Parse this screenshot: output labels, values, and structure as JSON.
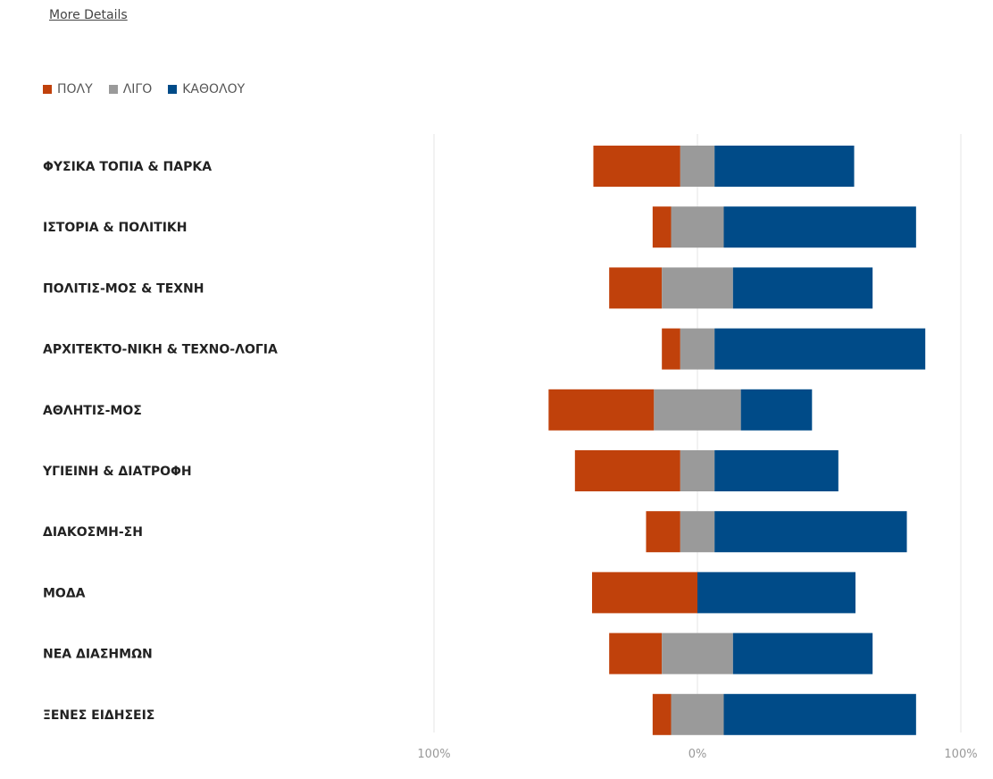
{
  "header": {
    "link_label": "More Details"
  },
  "colors": {
    "poly": "#c0410b",
    "ligo": "#9a9a9a",
    "katholou": "#004b88",
    "grid": "#e6e6e6"
  },
  "chart_data": {
    "type": "bar",
    "orientation": "horizontal-diverging",
    "title": "",
    "xlabel": "",
    "ylabel": "",
    "xlim": [
      -100,
      100
    ],
    "x_tick_labels": [
      "100%",
      "0%",
      "100%"
    ],
    "legend_position": "top-left",
    "grid": true,
    "categories": [
      "ΦΥΣΙΚΑ ΤΟΠΙΑ & ΠΑΡΚΑ",
      "ΙΣΤΟΡΙΑ & ΠΟΛΙΤΙΚΗ",
      "ΠΟΛΙΤΙΣ-ΜΟΣ & ΤΕΧΝΗ",
      "ΑΡΧΙΤΕΚΤΟ-ΝΙΚΗ & ΤΕΧΝΟ-ΛΟΓΙΑ",
      "ΑΘΛΗΤΙΣ-ΜΟΣ",
      "ΥΓΙΕΙΝΗ & ΔΙΑΤΡΟΦΗ",
      "ΔΙΑΚΟΣΜΗ-ΣΗ",
      "ΜΟΔΑ",
      "ΝΕΑ ΔΙΑΣΗΜΩΝ",
      "ΞΕΝΕΣ ΕΙΔΗΣΕΙΣ"
    ],
    "series": [
      {
        "name": "ΠΟΛΥ",
        "side": "left",
        "values": [
          33,
          7,
          20,
          7,
          40,
          40,
          13,
          40,
          20,
          7
        ]
      },
      {
        "name": "ΛΙΓΟ",
        "side": "center",
        "values": [
          13,
          20,
          27,
          13,
          33,
          13,
          13,
          0,
          27,
          20
        ]
      },
      {
        "name": "ΚΑΘΟΛΟΥ",
        "side": "right",
        "values": [
          53,
          73,
          53,
          80,
          27,
          47,
          73,
          60,
          53,
          73
        ]
      }
    ]
  }
}
